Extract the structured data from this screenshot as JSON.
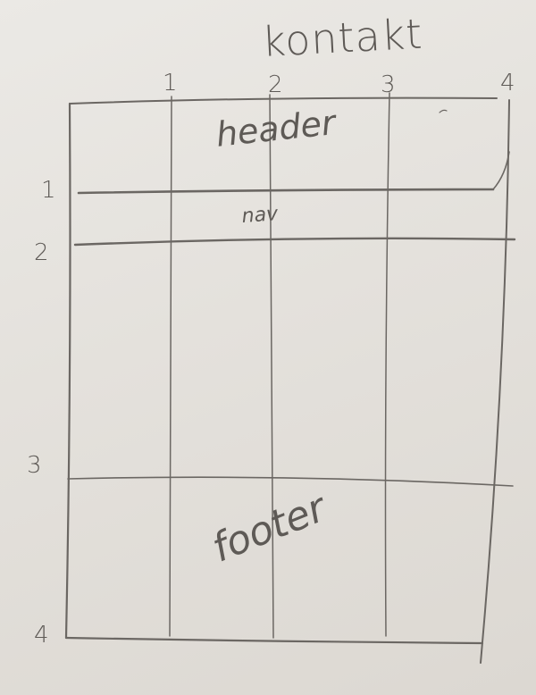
{
  "title": "kontakt",
  "regions": {
    "header": "header",
    "nav": "nav",
    "footer": "footer"
  },
  "column_lines": [
    "1",
    "2",
    "3",
    "4"
  ],
  "row_lines": [
    "1",
    "2",
    "3",
    "4"
  ],
  "colors": {
    "paper": "#e6e3de",
    "pencil": "#5e5a56"
  }
}
